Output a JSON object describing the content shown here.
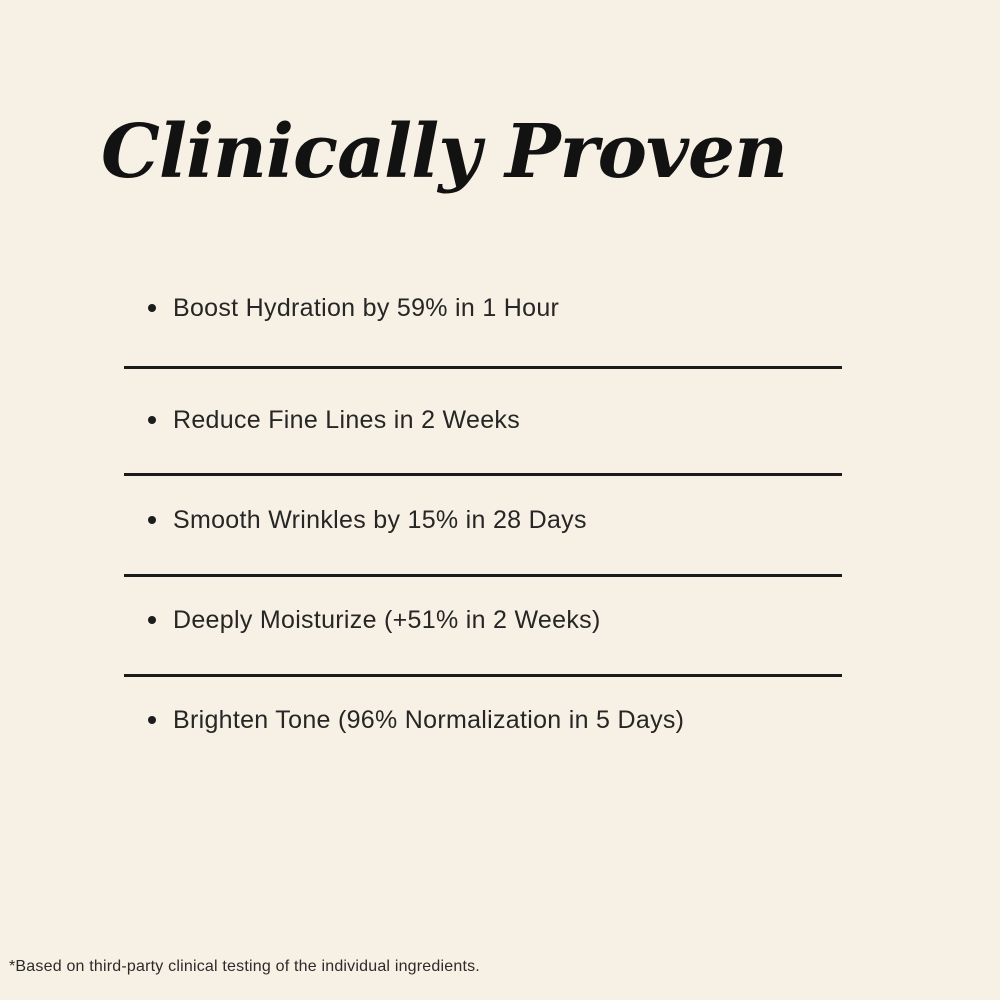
{
  "page": {
    "title": "Clinically Proven",
    "footnote": "*Based on third-party clinical testing of the individual ingredients."
  },
  "claims": {
    "items": [
      {
        "text": "Boost Hydration by 59% in 1 Hour"
      },
      {
        "text": "Reduce Fine Lines in 2 Weeks"
      },
      {
        "text": "Smooth Wrinkles by 15% in 28 Days"
      },
      {
        "text": "Deeply Moisturize (+51% in 2 Weeks)"
      },
      {
        "text": "Brighten Tone (96% Normalization in 5 Days)"
      }
    ]
  },
  "colors": {
    "background": "#F7F0E4",
    "heading_text": "#121212",
    "body_text": "#262626",
    "divider": "#1B1B1B"
  }
}
